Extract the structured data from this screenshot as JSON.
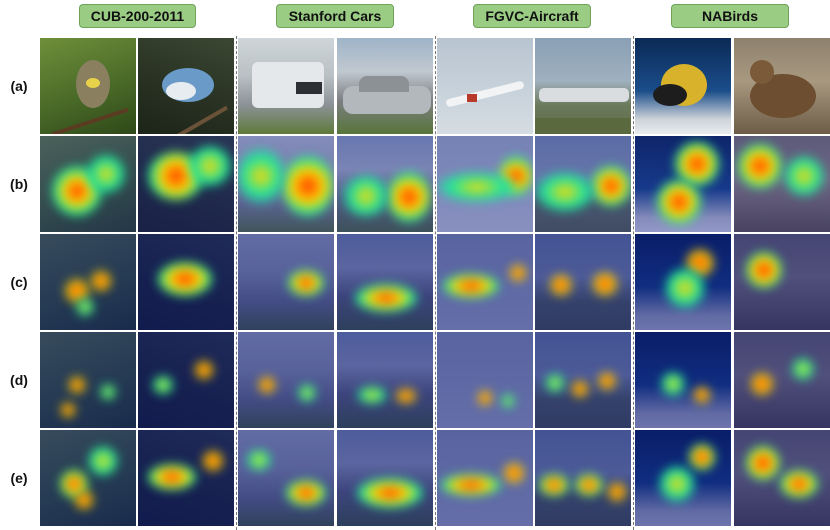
{
  "header": {
    "datasets": [
      "CUB-200-2011",
      "Stanford Cars",
      "FGVC-Aircraft",
      "NABirds"
    ]
  },
  "rows": {
    "labels": [
      "(a)",
      "(b)",
      "(c)",
      "(d)",
      "(e)"
    ]
  },
  "colors": {
    "header_fill": "#9acd83",
    "heat_hot": "#ff2a00",
    "heat_warm": "#ffd800",
    "heat_mid": "#18e6a0",
    "heat_base": "#1a2a90"
  }
}
